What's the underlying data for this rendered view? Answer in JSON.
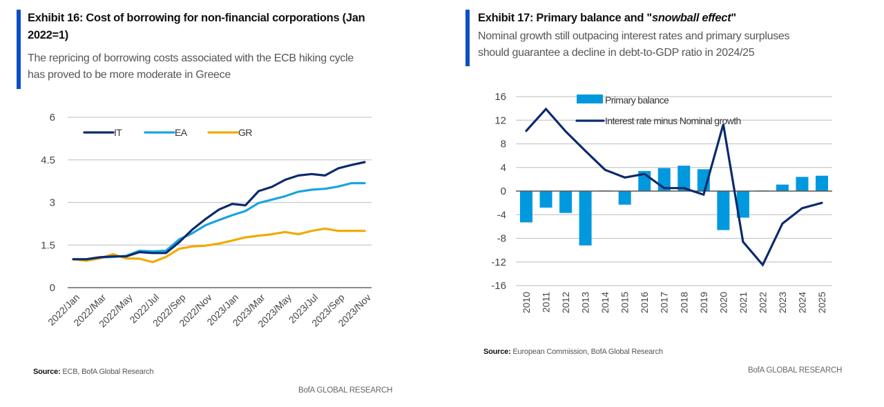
{
  "exhibits": [
    {
      "title": "Exhibit 16: Cost of borrowing for non-financial corporations (Jan 2022=1)",
      "title_line1": "Exhibit 16: Cost of borrowing for non-financial corporations (Jan",
      "title_line2": "2022=1)",
      "subtitle_line1": "The repricing of borrowing costs associated with the ECB hiking cycle",
      "subtitle_line2": "has proved to be more moderate in Greece",
      "source_label": "Source:",
      "source_text": " ECB, BofA Global Research",
      "brand": "BofA GLOBAL RESEARCH"
    },
    {
      "title": "Exhibit 17: Primary balance and \"snowball effect\"",
      "title_prefix": "Exhibit 17: Primary balance and \"",
      "title_italic": "snowball effect",
      "title_suffix": "\"",
      "subtitle_line1": "Nominal growth still outpacing interest rates and primary surpluses",
      "subtitle_line2": "should guarantee a decline in debt-to-GDP ratio in 2024/25",
      "source_label": "Source:",
      "source_text": " European Commission, BofA Global Research",
      "brand": "BofA GLOBAL RESEARCH"
    }
  ],
  "colors": {
    "accent": "#0a4fc7",
    "IT": "#0b2a6b",
    "EA": "#1aa3e0",
    "GR": "#f2a900",
    "bar": "#0099dd",
    "line": "#0b2a6b",
    "grid": "#c8c8c8",
    "axis": "#555555"
  },
  "chart_data": [
    {
      "type": "line",
      "title": "Cost of borrowing for non-financial corporations (Jan 2022=1)",
      "xlabel": "",
      "ylabel": "",
      "ylim": [
        0,
        6
      ],
      "yticks": [
        0,
        1.5,
        3,
        4.5,
        6
      ],
      "ytick_labels": [
        "0",
        "1.5",
        "3",
        "4.5",
        "6"
      ],
      "grid": true,
      "legend_position": "top-left",
      "x": [
        "2022/Jan",
        "2022/Feb",
        "2022/Mar",
        "2022/Apr",
        "2022/May",
        "2022/Jun",
        "2022/Jul",
        "2022/Aug",
        "2022/Sep",
        "2022/Oct",
        "2022/Nov",
        "2022/Dec",
        "2023/Jan",
        "2023/Feb",
        "2023/Mar",
        "2023/Apr",
        "2023/May",
        "2023/Jun",
        "2023/Jul",
        "2023/Aug",
        "2023/Sep",
        "2023/Oct",
        "2023/Nov"
      ],
      "xtick_labels": [
        "2022/Jan",
        "2022/Mar",
        "2022/May",
        "2022/Jul",
        "2022/Sep",
        "2022/Nov",
        "2023/Jan",
        "2023/Mar",
        "2023/May",
        "2023/Jul",
        "2023/Sep",
        "2023/Nov"
      ],
      "series": [
        {
          "name": "IT",
          "values": [
            1.0,
            1.0,
            1.07,
            1.1,
            1.1,
            1.25,
            1.22,
            1.22,
            1.6,
            2.05,
            2.42,
            2.75,
            2.95,
            2.9,
            3.4,
            3.55,
            3.8,
            3.95,
            4.0,
            3.95,
            4.2,
            4.32,
            4.42
          ]
        },
        {
          "name": "EA",
          "values": [
            1.0,
            1.0,
            1.07,
            1.08,
            1.12,
            1.3,
            1.28,
            1.3,
            1.7,
            1.92,
            2.2,
            2.38,
            2.55,
            2.7,
            2.98,
            3.1,
            3.22,
            3.38,
            3.45,
            3.48,
            3.56,
            3.68,
            3.68
          ]
        },
        {
          "name": "GR",
          "values": [
            1.0,
            0.95,
            1.03,
            1.18,
            1.03,
            1.02,
            0.9,
            1.08,
            1.37,
            1.45,
            1.48,
            1.55,
            1.66,
            1.77,
            1.83,
            1.88,
            1.96,
            1.88,
            2.0,
            2.08,
            2.0,
            2.0,
            2.0
          ]
        }
      ]
    },
    {
      "type": "bar",
      "title": "Primary balance and \"snowball effect\"",
      "xlabel": "",
      "ylabel": "",
      "ylim": [
        -16,
        16
      ],
      "yticks": [
        -16,
        -12,
        -8,
        -4,
        0,
        4,
        8,
        12,
        16
      ],
      "ytick_labels": [
        "-16",
        "-12",
        "-8",
        "-4",
        "0",
        "4",
        "8",
        "12",
        "16"
      ],
      "grid": true,
      "legend_position": "top-center",
      "categories": [
        "2010",
        "2011",
        "2012",
        "2013",
        "2014",
        "2015",
        "2016",
        "2017",
        "2018",
        "2019",
        "2020",
        "2021",
        "2022",
        "2023",
        "2024",
        "2025"
      ],
      "series": [
        {
          "name": "Primary balance",
          "type": "bar",
          "values": [
            -5.3,
            -2.8,
            -3.7,
            -9.2,
            0.1,
            -2.3,
            3.4,
            3.9,
            4.3,
            3.7,
            -6.6,
            -4.5,
            0.1,
            1.1,
            2.4,
            2.6
          ]
        },
        {
          "name": "Interest rate minus Nominal growth",
          "type": "line",
          "values": [
            10.2,
            13.9,
            10.1,
            6.8,
            3.6,
            2.3,
            2.9,
            0.5,
            0.5,
            -0.6,
            11.3,
            -8.6,
            -12.5,
            -5.5,
            -2.9,
            -2.0
          ]
        }
      ]
    }
  ]
}
